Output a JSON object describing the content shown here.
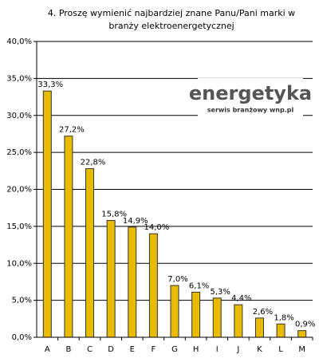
{
  "chart_data": {
    "type": "bar",
    "title": [
      "4. Proszę wymienić najbardziej znane Panu/Pani marki w",
      "branży elektroenergetycznej"
    ],
    "categories": [
      "A",
      "B",
      "C",
      "D",
      "E",
      "F",
      "G",
      "H",
      "I",
      "J",
      "K",
      "L",
      "M"
    ],
    "values": [
      33.3,
      27.2,
      22.8,
      15.8,
      14.9,
      14.0,
      7.0,
      6.1,
      5.3,
      4.4,
      2.6,
      1.8,
      0.9
    ],
    "value_labels": [
      "33,3%",
      "27,2%",
      "22,8%",
      "15,8%",
      "14,9%",
      "14,0%",
      "7,0%",
      "6,1%",
      "5,3%",
      "4,4%",
      "2,6%",
      "1,8%",
      "0,9%"
    ],
    "color": "#e6bb00",
    "ylim": [
      0,
      40
    ],
    "yticks": [
      {
        "value": 0,
        "label": "0,0%"
      },
      {
        "value": 5,
        "label": "5,0%"
      },
      {
        "value": 10,
        "label": "10,0%"
      },
      {
        "value": 15,
        "label": "15,0%"
      },
      {
        "value": 20,
        "label": "20,0%"
      },
      {
        "value": 25,
        "label": "25,0%"
      },
      {
        "value": 30,
        "label": "30,0%"
      },
      {
        "value": 35,
        "label": "35,0%"
      },
      {
        "value": 40,
        "label": "40,0%"
      }
    ],
    "grid": true,
    "logo": {
      "name": "energetyka",
      "tagline": "serwis branżowy wnp.pl"
    }
  }
}
